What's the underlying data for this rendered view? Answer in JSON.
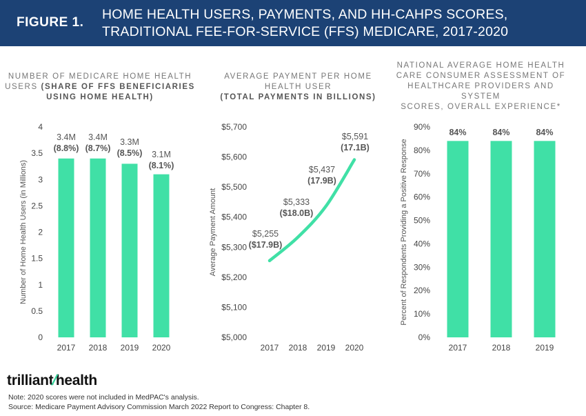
{
  "header": {
    "figure_label": "FIGURE 1.",
    "title_line1": "HOME HEALTH USERS, PAYMENTS, AND HH-CAHPS SCORES,",
    "title_line2": "TRADITIONAL FEE-FOR-SERVICE (FFS) MEDICARE, 2017-2020"
  },
  "chart_data": [
    {
      "type": "bar",
      "title_line1": "NUMBER OF MEDICARE HOME HEALTH",
      "title_line2_plain": "USERS ",
      "title_line2_bold": "(SHARE OF FFS BENEFICIARIES",
      "title_line3_bold": "USING HOME HEALTH)",
      "categories": [
        "2017",
        "2018",
        "2019",
        "2020"
      ],
      "values": [
        3.4,
        3.4,
        3.3,
        3.1
      ],
      "labels": [
        "3.4M",
        "3.4M",
        "3.3M",
        "3.1M"
      ],
      "sublabels": [
        "(8.8%)",
        "(8.7%)",
        "(8.5%)",
        "(8.1%)"
      ],
      "ylabel": "Number of Home Health Users (in Millions)",
      "ylim": [
        0,
        4
      ],
      "yticks": [
        "0",
        "0.5",
        "1",
        "1.5",
        "2",
        "2.5",
        "3",
        "3.5",
        "4"
      ],
      "ytick_values": [
        0,
        0.5,
        1,
        1.5,
        2,
        2.5,
        3,
        3.5,
        4
      ],
      "color": "#40e0a6"
    },
    {
      "type": "line",
      "title_line1": "AVERAGE PAYMENT PER HOME",
      "title_line2": "HEALTH USER",
      "title_line3_bold": "(TOTAL PAYMENTS IN BILLIONS)",
      "categories": [
        "2017",
        "2018",
        "2019",
        "2020"
      ],
      "values": [
        5255,
        5333,
        5437,
        5591
      ],
      "labels": [
        "$5,255",
        "$5,333",
        "$5,437",
        "$5,591"
      ],
      "sublabels": [
        "($17.9B)",
        "($18.0B)",
        "(17.9B)",
        "(17.1B)"
      ],
      "ylabel": "Average Payment Amount",
      "ylim": [
        5000,
        5700
      ],
      "yticks": [
        "$5,000",
        "$5,100",
        "$5,200",
        "$5,300",
        "$5,400",
        "$5,500",
        "$5,600",
        "$5,700"
      ],
      "ytick_values": [
        5000,
        5100,
        5200,
        5300,
        5400,
        5500,
        5600,
        5700
      ],
      "color": "#40e0a6"
    },
    {
      "type": "bar",
      "title_line1": "NATIONAL AVERAGE HOME HEALTH",
      "title_line2": "CARE CONSUMER ASSESSMENT OF",
      "title_line3": "HEALTHCARE PROVIDERS AND SYSTEM",
      "title_line4": "SCORES, OVERALL EXPERIENCE*",
      "categories": [
        "2017",
        "2018",
        "2019"
      ],
      "values": [
        84,
        84,
        84
      ],
      "labels": [
        "84%",
        "84%",
        "84%"
      ],
      "ylabel": "Percent of Respondents Providing a Positive Response",
      "ylim": [
        0,
        90
      ],
      "yticks": [
        "0%",
        "10%",
        "20%",
        "30%",
        "40%",
        "50%",
        "60%",
        "70%",
        "80%",
        "90%"
      ],
      "ytick_values": [
        0,
        10,
        20,
        30,
        40,
        50,
        60,
        70,
        80,
        90
      ],
      "color": "#40e0a6"
    }
  ],
  "footer": {
    "logo_left": "trilliant",
    "logo_right": "health",
    "note": "Note: 2020 scores were not included in MedPAC's analysis.",
    "source": "Source: Medicare Payment Advisory Commission March 2022 Report to Congress: Chapter 8."
  }
}
